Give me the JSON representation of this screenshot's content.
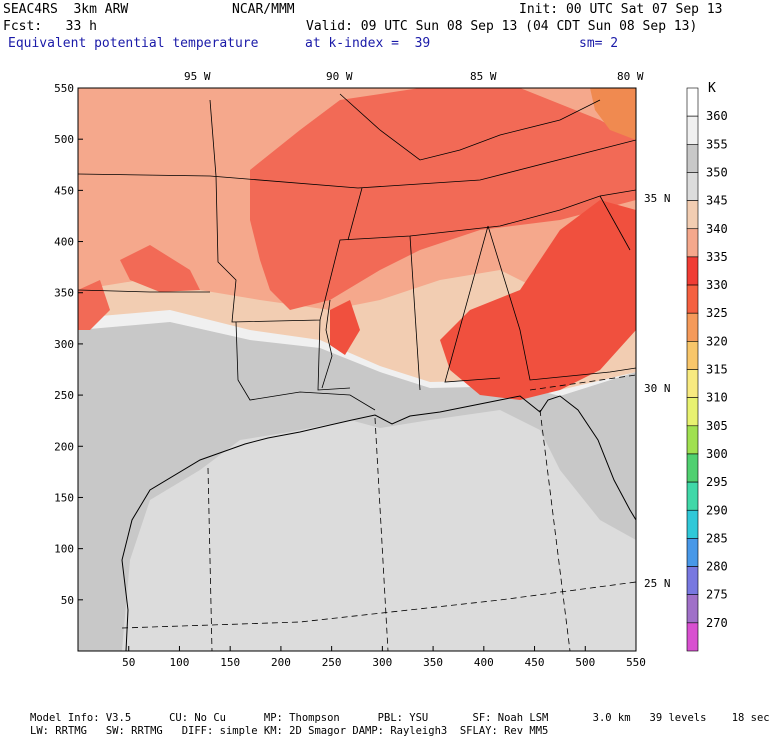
{
  "header": {
    "model": "SEAC4RS  3km ARW",
    "org": "NCAR/MMM",
    "init": "Init: 00 UTC Sat 07 Sep 13",
    "fcst": "Fcst:   33 h",
    "valid": "Valid: 09 UTC Sun 08 Sep 13 (04 CDT Sun 08 Sep 13)",
    "field": "Equivalent potential temperature",
    "level": "at k-index =  39",
    "smooth": "sm= 2"
  },
  "map": {
    "x_ticks": [
      "50",
      "100",
      "150",
      "200",
      "250",
      "300",
      "350",
      "400",
      "450",
      "500",
      "550"
    ],
    "y_ticks": [
      "550",
      "500",
      "450",
      "400",
      "350",
      "300",
      "250",
      "200",
      "150",
      "100",
      "50"
    ],
    "lon_labels": [
      "95 W",
      "90 W",
      "85 W",
      "80 W"
    ],
    "lat_labels": [
      "35 N",
      "30 N",
      "25 N"
    ],
    "colors": {
      "c355": "#c8c8c8",
      "c350": "#dcdcdc",
      "c360": "#f0f0f0",
      "c345": "#f2cdb2",
      "c340": "#f5a88c",
      "c335": "#f26a56",
      "c330": "#f0503e",
      "c325": "#f08a50",
      "c320": "#f8c060"
    }
  },
  "colorbar": {
    "unit": "K",
    "levels": [
      {
        "label": "360",
        "color": "#ffffff"
      },
      {
        "label": "355",
        "color": "#f0f0f0"
      },
      {
        "label": "350",
        "color": "#c8c8c8"
      },
      {
        "label": "345",
        "color": "#dcdcdc"
      },
      {
        "label": "340",
        "color": "#f2cdb2"
      },
      {
        "label": "335",
        "color": "#f5a88c"
      },
      {
        "label": "330",
        "color": "#f03c34"
      },
      {
        "label": "325",
        "color": "#f56040"
      },
      {
        "label": "320",
        "color": "#f59a5a"
      },
      {
        "label": "315",
        "color": "#f8c66a"
      },
      {
        "label": "310",
        "color": "#f8ea80"
      },
      {
        "label": "305",
        "color": "#e8f270"
      },
      {
        "label": "300",
        "color": "#a0e050"
      },
      {
        "label": "295",
        "color": "#50d070"
      },
      {
        "label": "290",
        "color": "#40d8a8"
      },
      {
        "label": "285",
        "color": "#30c8d8"
      },
      {
        "label": "280",
        "color": "#4898e8"
      },
      {
        "label": "275",
        "color": "#7878e0"
      },
      {
        "label": "270",
        "color": "#a070c8"
      },
      {
        "label": "",
        "color": "#d850d0"
      }
    ]
  },
  "footer": {
    "line1": "Model Info: V3.5      CU: No Cu      MP: Thompson      PBL: YSU       SF: Noah LSM       3.0 km   39 levels    18 sec",
    "line2": "LW: RRTMG   SW: RRTMG   DIFF: simple KM: 2D Smagor DAMP: Rayleigh3  SFLAY: Rev MM5"
  }
}
